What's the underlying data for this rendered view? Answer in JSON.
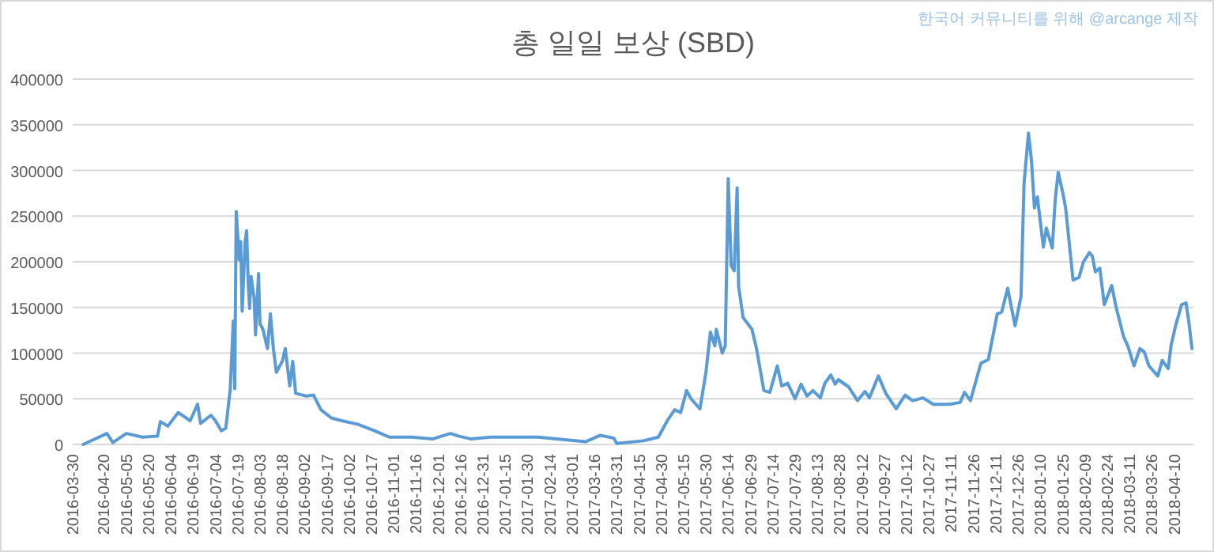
{
  "chart_data": {
    "type": "line",
    "title": "총 일일 보상 (SBD)",
    "annotations": [
      "한국어 커뮤니티를 위해 @arcange 제작"
    ],
    "color": "#5b9bd5",
    "x": [
      "2016-04-06",
      "2016-04-22",
      "2016-04-26",
      "2016-05-05",
      "2016-05-16",
      "2016-05-26",
      "2016-05-28",
      "2016-06-02",
      "2016-06-09",
      "2016-06-17",
      "2016-06-22",
      "2016-06-24",
      "2016-07-01",
      "2016-07-04",
      "2016-07-08",
      "2016-07-11",
      "2016-07-14",
      "2016-07-16",
      "2016-07-17",
      "2016-07-18",
      "2016-07-20",
      "2016-07-21",
      "2016-07-22",
      "2016-07-24",
      "2016-07-25",
      "2016-07-26",
      "2016-07-27",
      "2016-07-28",
      "2016-07-30",
      "2016-07-31",
      "2016-08-02",
      "2016-08-03",
      "2016-08-05",
      "2016-08-08",
      "2016-08-10",
      "2016-08-12",
      "2016-08-14",
      "2016-08-18",
      "2016-08-20",
      "2016-08-23",
      "2016-08-25",
      "2016-08-27",
      "2016-09-03",
      "2016-09-08",
      "2016-09-13",
      "2016-09-20",
      "2016-09-27",
      "2016-10-08",
      "2016-10-19",
      "2016-10-29",
      "2016-11-13",
      "2016-11-27",
      "2016-12-09",
      "2016-12-15",
      "2016-12-23",
      "2017-01-05",
      "2017-02-06",
      "2017-03-10",
      "2017-03-20",
      "2017-03-29",
      "2017-03-31",
      "2017-04-18",
      "2017-04-28",
      "2017-05-04",
      "2017-05-09",
      "2017-05-13",
      "2017-05-17",
      "2017-05-20",
      "2017-05-26",
      "2017-05-30",
      "2017-06-02",
      "2017-06-05",
      "2017-06-06",
      "2017-06-10",
      "2017-06-12",
      "2017-06-14",
      "2017-06-16",
      "2017-06-18",
      "2017-06-20",
      "2017-06-21",
      "2017-06-24",
      "2017-06-30",
      "2017-07-03",
      "2017-07-08",
      "2017-07-12",
      "2017-07-17",
      "2017-07-20",
      "2017-07-24",
      "2017-07-29",
      "2017-08-02",
      "2017-08-06",
      "2017-08-10",
      "2017-08-15",
      "2017-08-18",
      "2017-08-22",
      "2017-08-25",
      "2017-08-27",
      "2017-09-03",
      "2017-09-09",
      "2017-09-14",
      "2017-09-17",
      "2017-09-23",
      "2017-09-28",
      "2017-10-05",
      "2017-10-11",
      "2017-10-16",
      "2017-10-23",
      "2017-10-30",
      "2017-11-10",
      "2017-11-17",
      "2017-11-20",
      "2017-11-24",
      "2017-12-01",
      "2017-12-06",
      "2017-12-12",
      "2017-12-15",
      "2017-12-19",
      "2017-12-24",
      "2017-12-28",
      "2017-12-30",
      "2018-01-02",
      "2018-01-04",
      "2018-01-06",
      "2018-01-08",
      "2018-01-12",
      "2018-01-14",
      "2018-01-18",
      "2018-01-20",
      "2018-01-22",
      "2018-01-25",
      "2018-01-27",
      "2018-02-01",
      "2018-02-05",
      "2018-02-08",
      "2018-02-12",
      "2018-02-14",
      "2018-02-16",
      "2018-02-19",
      "2018-02-22",
      "2018-02-27",
      "2018-03-02",
      "2018-03-07",
      "2018-03-10",
      "2018-03-14",
      "2018-03-18",
      "2018-03-21",
      "2018-03-24",
      "2018-03-30",
      "2018-04-02",
      "2018-04-06",
      "2018-04-08",
      "2018-04-11",
      "2018-04-15",
      "2018-04-18",
      "2018-04-20",
      "2018-04-22"
    ],
    "values": [
      0,
      12000,
      2000,
      12000,
      8000,
      9000,
      25000,
      20000,
      35000,
      26000,
      44000,
      23000,
      32000,
      26000,
      15000,
      18000,
      61000,
      135000,
      61000,
      255000,
      202000,
      222000,
      146000,
      222000,
      234000,
      179000,
      149000,
      184000,
      161000,
      120000,
      187000,
      132000,
      126000,
      105000,
      143000,
      105000,
      79000,
      91000,
      105000,
      64000,
      91000,
      56000,
      53000,
      54000,
      38000,
      29000,
      26000,
      22000,
      15000,
      8000,
      8000,
      6000,
      12000,
      9000,
      6000,
      8000,
      8000,
      3000,
      10000,
      7000,
      1000,
      4000,
      8000,
      26000,
      38000,
      35000,
      59000,
      50000,
      39000,
      79000,
      123000,
      108000,
      126000,
      100000,
      108000,
      291000,
      196000,
      190000,
      281000,
      173000,
      139000,
      126000,
      105000,
      59000,
      57000,
      86000,
      64000,
      67000,
      50000,
      66000,
      53000,
      59000,
      51000,
      67000,
      76000,
      66000,
      71000,
      63000,
      48000,
      58000,
      51000,
      75000,
      56000,
      39000,
      54000,
      48000,
      51000,
      44000,
      44000,
      46000,
      57000,
      48000,
      89000,
      93000,
      143000,
      145000,
      171000,
      130000,
      162000,
      285000,
      341000,
      311000,
      259000,
      271000,
      216000,
      237000,
      215000,
      268000,
      298000,
      276000,
      259000,
      180000,
      183000,
      200000,
      210000,
      206000,
      189000,
      193000,
      153000,
      174000,
      150000,
      118000,
      107000,
      86000,
      105000,
      101000,
      86000,
      75000,
      92000,
      83000,
      109000,
      130000,
      153000,
      155000,
      133000,
      105000
    ],
    "xlim": [
      "2016-03-30",
      "2018-04-23"
    ],
    "xticks": [
      "2016-03-30",
      "2016-04-20",
      "2016-05-05",
      "2016-05-20",
      "2016-06-04",
      "2016-06-19",
      "2016-07-04",
      "2016-07-19",
      "2016-08-03",
      "2016-08-18",
      "2016-09-02",
      "2016-09-17",
      "2016-10-02",
      "2016-10-17",
      "2016-11-01",
      "2016-11-16",
      "2016-12-01",
      "2016-12-16",
      "2016-12-31",
      "2017-01-15",
      "2017-01-30",
      "2017-02-14",
      "2017-03-01",
      "2017-03-16",
      "2017-03-31",
      "2017-04-15",
      "2017-04-30",
      "2017-05-15",
      "2017-05-30",
      "2017-06-14",
      "2017-06-29",
      "2017-07-14",
      "2017-07-29",
      "2017-08-13",
      "2017-08-28",
      "2017-09-12",
      "2017-09-27",
      "2017-10-12",
      "2017-10-27",
      "2017-11-11",
      "2017-11-26",
      "2017-12-11",
      "2017-12-26",
      "2018-01-10",
      "2018-01-25",
      "2018-02-09",
      "2018-02-24",
      "2018-03-11",
      "2018-03-26",
      "2018-04-10"
    ],
    "ylim": [
      0,
      400000
    ],
    "yticks": [
      0,
      50000,
      100000,
      150000,
      200000,
      250000,
      300000,
      350000,
      400000
    ],
    "grid": "y"
  }
}
